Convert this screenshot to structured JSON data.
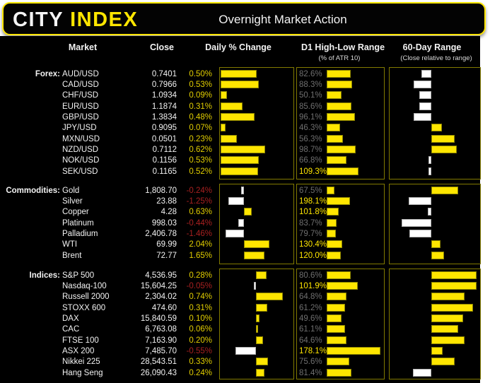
{
  "header": {
    "logo_city": "CITY",
    "logo_index": "INDEX",
    "title": "Overnight Market Action"
  },
  "columns": {
    "market": "Market",
    "close": "Close",
    "daily": "Daily % Change",
    "d1": "D1 High-Low Range",
    "d1_sub": "(% of ATR 10)",
    "range": "60-Day Range",
    "range_sub": "(Close relative to range)"
  },
  "colors": {
    "accent_yellow": "#ffe600",
    "bar_border": "#8f8600",
    "box_border": "#827a00",
    "text": "#f2f2f2",
    "pos_text": "#e2ce00",
    "neg_text": "#a82020",
    "dim_label": "#6f6f6f",
    "background": "#000000",
    "page_background": "#ffffff"
  },
  "chart_data": {
    "type": "table",
    "title": "Overnight Market Action",
    "notes": "Each row: market, close price, daily % change (yellow bar = positive, white bar = negative), D1 high-low range as % of ATR 10 (label yellow when >= 100%), and close position within 60-day range relative to midpoint (-1..+1; white bar left = lower half, yellow bar right = upper half).",
    "sections": [
      {
        "label": "Forex:",
        "rows": [
          {
            "market": "AUD/USD",
            "close": "0.7401",
            "daily": 0.5,
            "d1": 82.6,
            "range": -0.24
          },
          {
            "market": "CAD/USD",
            "close": "0.7966",
            "daily": 0.53,
            "d1": 88.3,
            "range": -0.43
          },
          {
            "market": "CHF/USD",
            "close": "1.0934",
            "daily": 0.09,
            "d1": 50.1,
            "range": -0.29
          },
          {
            "market": "EUR/USD",
            "close": "1.1874",
            "daily": 0.31,
            "d1": 85.6,
            "range": -0.29
          },
          {
            "market": "GBP/USD",
            "close": "1.3834",
            "daily": 0.48,
            "d1": 96.1,
            "range": -0.43
          },
          {
            "market": "JPY/USD",
            "close": "0.9095",
            "daily": 0.07,
            "d1": 46.3,
            "range": 0.23
          },
          {
            "market": "MXN/USD",
            "close": "0.0501",
            "daily": 0.23,
            "d1": 56.3,
            "range": 0.5
          },
          {
            "market": "NZD/USD",
            "close": "0.7112",
            "daily": 0.62,
            "d1": 98.7,
            "range": 0.55
          },
          {
            "market": "NOK/USD",
            "close": "0.1156",
            "daily": 0.53,
            "d1": 66.8,
            "range": -0.07
          },
          {
            "market": "SEK/USD",
            "close": "0.1165",
            "daily": 0.52,
            "d1": 109.3,
            "range": -0.07
          }
        ]
      },
      {
        "label": "Commodities:",
        "rows": [
          {
            "market": "Gold",
            "close": "1,808.70",
            "daily": -0.24,
            "d1": 67.5,
            "range": 0.58
          },
          {
            "market": "Silver",
            "close": "23.88",
            "daily": -1.25,
            "d1": 198.1,
            "range": -0.55
          },
          {
            "market": "Copper",
            "close": "4.28",
            "daily": 0.63,
            "d1": 101.8,
            "range": -0.09
          },
          {
            "market": "Platinum",
            "close": "998.03",
            "daily": -0.44,
            "d1": 83.7,
            "range": -0.72
          },
          {
            "market": "Palladium",
            "close": "2,406.78",
            "daily": -1.46,
            "d1": 79.7,
            "range": -0.53
          },
          {
            "market": "WTI",
            "close": "69.99",
            "daily": 2.04,
            "d1": 130.4,
            "range": 0.2
          },
          {
            "market": "Brent",
            "close": "72.77",
            "daily": 1.65,
            "d1": 120.0,
            "range": 0.27
          }
        ]
      },
      {
        "label": "Indices:",
        "rows": [
          {
            "market": "S&P 500",
            "close": "4,536.95",
            "daily": 0.28,
            "d1": 80.6,
            "range": 0.97
          },
          {
            "market": "Nasdaq-100",
            "close": "15,604.25",
            "daily": -0.05,
            "d1": 101.9,
            "range": 0.97
          },
          {
            "market": "Russell 2000",
            "close": "2,304.02",
            "daily": 0.74,
            "d1": 64.8,
            "range": 0.71
          },
          {
            "market": "STOXX 600",
            "close": "474.60",
            "daily": 0.31,
            "d1": 61.2,
            "range": 0.89
          },
          {
            "market": "DAX",
            "close": "15,840.59",
            "daily": 0.1,
            "d1": 49.6,
            "range": 0.68
          },
          {
            "market": "CAC",
            "close": "6,763.08",
            "daily": 0.06,
            "d1": 61.1,
            "range": 0.57
          },
          {
            "market": "FTSE 100",
            "close": "7,163.90",
            "daily": 0.2,
            "d1": 64.6,
            "range": 0.71
          },
          {
            "market": "ASX 200",
            "close": "7,485.70",
            "daily": -0.55,
            "d1": 178.1,
            "range": 0.24
          },
          {
            "market": "Nikkei 225",
            "close": "28,543.51",
            "daily": 0.33,
            "d1": 75.6,
            "range": 0.5
          },
          {
            "market": "Hang Seng",
            "close": "26,090.43",
            "daily": 0.24,
            "d1": 81.4,
            "range": -0.44
          }
        ]
      }
    ]
  }
}
